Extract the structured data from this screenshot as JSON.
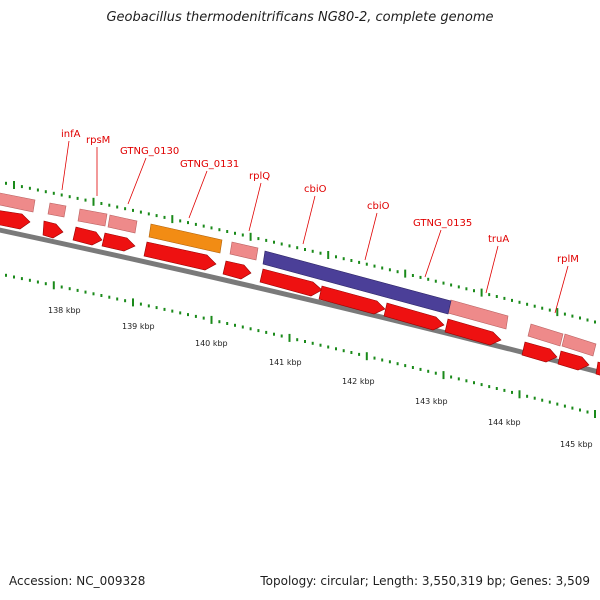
{
  "title": "Geobacillus thermodenitrificans NG80-2, complete genome",
  "footer": {
    "accession": "Accession: NC_009328",
    "topology": "Topology: circular; Length: 3,550,319 bp; Genes: 3,509"
  },
  "colors": {
    "forward_cds": "#ee1111",
    "reverse_cds": "#ee8a8a",
    "highlight_orange": "#f28c14",
    "highlight_purple": "#4b3f98",
    "backbone": "#7a7a7a",
    "ticks": "#1a8a1a",
    "labels": "#e00000"
  },
  "axis": {
    "unit": "kbp",
    "major_ticks": [
      "138 kbp",
      "139 kbp",
      "140 kbp",
      "141 kbp",
      "142 kbp",
      "143 kbp",
      "144 kbp",
      "145 kbp"
    ]
  },
  "genes": [
    {
      "name": "infA"
    },
    {
      "name": "rpsM"
    },
    {
      "name": "GTNG_0130"
    },
    {
      "name": "GTNG_0131"
    },
    {
      "name": "rplQ"
    },
    {
      "name": "cbiO"
    },
    {
      "name": "cbiO"
    },
    {
      "name": "GTNG_0135"
    },
    {
      "name": "truA"
    },
    {
      "name": "rplM"
    }
  ]
}
